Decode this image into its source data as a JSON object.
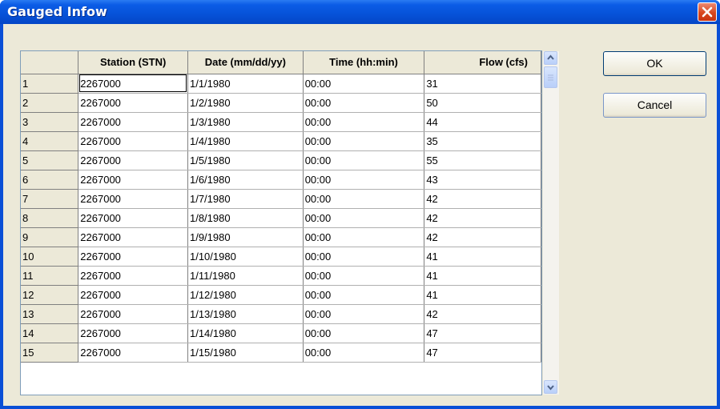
{
  "window": {
    "title": "Gauged Infow"
  },
  "table": {
    "columns": [
      "",
      "Station (STN)",
      "Date (mm/dd/yy)",
      "Time (hh:min)",
      "Flow (cfs)"
    ],
    "rows": [
      [
        "1",
        "2267000",
        "1/1/1980",
        "00:00",
        "31"
      ],
      [
        "2",
        "2267000",
        "1/2/1980",
        "00:00",
        "50"
      ],
      [
        "3",
        "2267000",
        "1/3/1980",
        "00:00",
        "44"
      ],
      [
        "4",
        "2267000",
        "1/4/1980",
        "00:00",
        "35"
      ],
      [
        "5",
        "2267000",
        "1/5/1980",
        "00:00",
        "55"
      ],
      [
        "6",
        "2267000",
        "1/6/1980",
        "00:00",
        "43"
      ],
      [
        "7",
        "2267000",
        "1/7/1980",
        "00:00",
        "42"
      ],
      [
        "8",
        "2267000",
        "1/8/1980",
        "00:00",
        "42"
      ],
      [
        "9",
        "2267000",
        "1/9/1980",
        "00:00",
        "42"
      ],
      [
        "10",
        "2267000",
        "1/10/1980",
        "00:00",
        "41"
      ],
      [
        "11",
        "2267000",
        "1/11/1980",
        "00:00",
        "41"
      ],
      [
        "12",
        "2267000",
        "1/12/1980",
        "00:00",
        "41"
      ],
      [
        "13",
        "2267000",
        "1/13/1980",
        "00:00",
        "42"
      ],
      [
        "14",
        "2267000",
        "1/14/1980",
        "00:00",
        "47"
      ],
      [
        "15",
        "2267000",
        "1/15/1980",
        "00:00",
        "47"
      ]
    ]
  },
  "buttons": {
    "ok": "OK",
    "cancel": "Cancel"
  },
  "icons": {
    "close": "close-icon",
    "scroll_up": "chevron-up-icon",
    "scroll_down": "chevron-down-icon",
    "scroll_left": "chevron-left-icon",
    "scroll_right": "chevron-right-icon"
  },
  "colors": {
    "titlebar": "#0652d8",
    "close_button": "#d8471e",
    "dialog_bg": "#ece9d8"
  }
}
